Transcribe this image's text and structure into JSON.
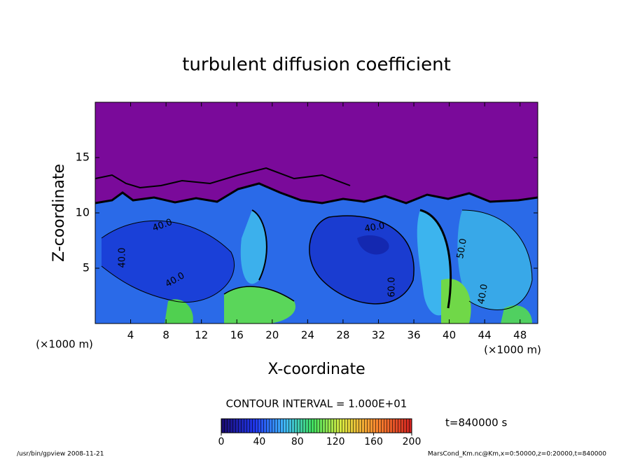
{
  "chart_data": {
    "type": "contour",
    "title": "turbulent diffusion coefficient",
    "xlabel": "X-coordinate",
    "ylabel": "Z-coordinate",
    "x_unit": "(×1000 m)",
    "y_unit": "(×1000 m)",
    "xlim": [
      0,
      50
    ],
    "ylim": [
      0,
      20
    ],
    "xticks": [
      4,
      8,
      12,
      16,
      20,
      24,
      28,
      32,
      36,
      40,
      44,
      48
    ],
    "yticks": [
      5,
      10,
      15
    ],
    "contour_interval": "CONTOUR INTERVAL = 1.000E+01",
    "time_label": "t=840000 s",
    "colorbar": {
      "lim": [
        0,
        200
      ],
      "ticks": [
        0,
        40,
        80,
        120,
        160,
        200
      ]
    },
    "contour_labels": [
      "40.0",
      "40.0",
      "40.0",
      "40.0",
      "60.0",
      "50.0",
      "40.0"
    ]
  },
  "footer": {
    "left": "/usr/bin/gpview  2008-11-21",
    "right": "MarsCond_Km.nc@Km,x=0:50000,z=0:20000,t=840000"
  }
}
